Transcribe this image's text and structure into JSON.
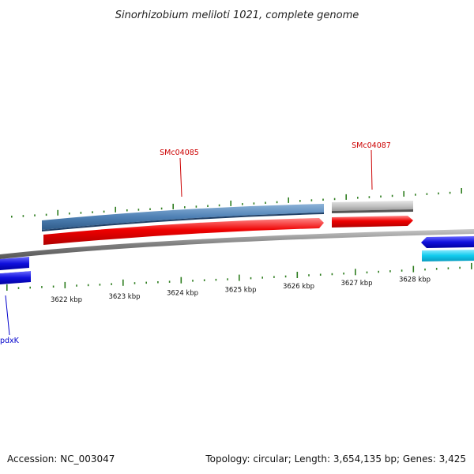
{
  "title": "Sinorhizobium meliloti 1021, complete genome",
  "footer": {
    "accession": "Accession: NC_003047",
    "summary": "Topology: circular; Length: 3,654,135 bp; Genes: 3,425"
  },
  "ruler": {
    "unit": "kbp",
    "ticks": [
      {
        "kbp": 3622,
        "label": "3622 kbp"
      },
      {
        "kbp": 3623,
        "label": "3623 kbp"
      },
      {
        "kbp": 3624,
        "label": "3624 kbp"
      },
      {
        "kbp": 3625,
        "label": "3625 kbp"
      },
      {
        "kbp": 3626,
        "label": "3626 kbp"
      },
      {
        "kbp": 3627,
        "label": "3627 kbp"
      },
      {
        "kbp": 3628,
        "label": "3628 kbp"
      }
    ]
  },
  "genes": [
    {
      "name": "SMc04085",
      "color": "#cc0000"
    },
    {
      "name": "SMc04087",
      "color": "#cc0000"
    },
    {
      "name": "pdxK",
      "color": "#0000cc"
    }
  ],
  "colors": {
    "cds_red": "#ee0000",
    "cds_blue": "#1010dd",
    "cds_cyan": "#11ccee",
    "feature_steelblue": "#4f81b5",
    "feature_gray": "#c4c4c4",
    "backbone": "#808080",
    "tick_green": "#2e7d1f"
  }
}
